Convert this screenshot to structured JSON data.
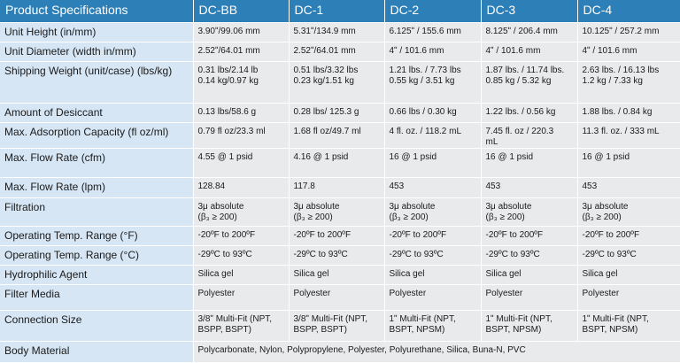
{
  "table": {
    "headers": [
      "Product Specifications",
      "DC-BB",
      "DC-1",
      "DC-2",
      "DC-3",
      "DC-4"
    ],
    "rows": [
      {
        "key": "height",
        "label": "Unit Height (in/mm)",
        "values": [
          [
            "3.90ʺ/99.06  mm"
          ],
          [
            "5.31ʺ/134.9  mm"
          ],
          [
            "6.125ʺ / 155.6  mm"
          ],
          [
            "8.125ʺ / 206.4  mm"
          ],
          [
            "10.125ʺ / 257.2  mm"
          ]
        ]
      },
      {
        "key": "diam",
        "label": "Unit Diameter (width in/mm)",
        "values": [
          [
            "2.52ʺ/64.01  mm"
          ],
          [
            "2.52ʺ/64.01  mm"
          ],
          [
            "4ʺ / 101.6  mm"
          ],
          [
            "4ʺ / 101.6  mm"
          ],
          [
            "4ʺ / 101.6  mm"
          ]
        ]
      },
      {
        "key": "ship",
        "label": "Shipping Weight (unit/case) (lbs/kg)",
        "values": [
          [
            "0.31  lbs/2.14  lb",
            "0.14  kg/0.97  kg"
          ],
          [
            "0.51  lbs/3.32  lbs",
            "0.23  kg/1.51  kg"
          ],
          [
            "1.21  lbs. / 7.73  lbs",
            "0.55  kg / 3.51  kg"
          ],
          [
            "1.87  lbs. / 11.74  lbs.",
            "0.85  kg / 5.32  kg"
          ],
          [
            "2.63  lbs. / 16.13  lbs",
            "1.2  kg / 7.33  kg"
          ]
        ]
      },
      {
        "key": "desic",
        "label": "Amount of Desiccant",
        "values": [
          [
            "0.13  lbs/58.6  g"
          ],
          [
            "0.28  lbs/ 125.3  g"
          ],
          [
            "0.66  lbs / 0.30  kg"
          ],
          [
            "1.22  lbs. / 0.56  kg"
          ],
          [
            "1.88  lbs. / 0.84  kg"
          ]
        ]
      },
      {
        "key": "adsorb",
        "label": "Max. Adsorption Capacity  (fl oz/ml)",
        "values": [
          [
            "0.79  fl oz/23.3  ml"
          ],
          [
            "1.68  fl oz/49.7  ml"
          ],
          [
            "4  fl. oz. / 118.2  mL"
          ],
          [
            "7.45  fl. oz / 220.3",
            "mL"
          ],
          [
            "11.3  fl. oz. / 333  mL"
          ]
        ]
      },
      {
        "key": "cfm",
        "label": "Max. Flow Rate  (cfm)",
        "values": [
          [
            "4.55 @ 1 psid"
          ],
          [
            "4.16 @ 1 psid"
          ],
          [
            "16 @ 1 psid"
          ],
          [
            "16 @ 1 psid"
          ],
          [
            "16 @ 1 psid"
          ]
        ]
      },
      {
        "key": "lpm",
        "label": "Max. Flow Rate  (lpm)",
        "values": [
          [
            "128.84"
          ],
          [
            "117.8"
          ],
          [
            "453"
          ],
          [
            "453"
          ],
          [
            "453"
          ]
        ]
      },
      {
        "key": "filt",
        "label": "Filtration",
        "values": [
          [
            "3μ absolute",
            "(β₃ ≥ 200)"
          ],
          [
            "3μ absolute",
            "(β₃ ≥ 200)"
          ],
          [
            "3μ absolute",
            "(β₃ ≥ 200)"
          ],
          [
            "3μ absolute",
            "(β₃ ≥ 200)"
          ],
          [
            "3μ absolute",
            "(β₃ ≥ 200)"
          ]
        ]
      },
      {
        "key": "tf",
        "label": "Operating  Temp.  Range  (°F)",
        "values": [
          [
            "-20ºF to 200ºF"
          ],
          [
            "-20ºF to 200ºF"
          ],
          [
            "-20ºF to 200ºF"
          ],
          [
            "-20ºF to 200ºF"
          ],
          [
            "-20ºF to 200ºF"
          ]
        ]
      },
      {
        "key": "tc",
        "label": "Operating  Temp.  Range  (°C)",
        "values": [
          [
            "-29ºC  to 93ºC"
          ],
          [
            "-29ºC  to 93ºC"
          ],
          [
            "-29ºC  to 93ºC"
          ],
          [
            "-29ºC  to 93ºC"
          ],
          [
            "-29ºC  to 93ºC"
          ]
        ]
      },
      {
        "key": "hydro",
        "label": "Hydrophilic  Agent",
        "values": [
          [
            "Silica  gel"
          ],
          [
            "Silica  gel"
          ],
          [
            "Silica  gel"
          ],
          [
            "Silica  gel"
          ],
          [
            "Silica  gel"
          ]
        ]
      },
      {
        "key": "media",
        "label": "Filter Media",
        "values": [
          [
            "Polyester"
          ],
          [
            "Polyester"
          ],
          [
            "Polyester"
          ],
          [
            "Polyester"
          ],
          [
            "Polyester"
          ]
        ]
      },
      {
        "key": "conn",
        "label": "Connection  Size",
        "values": [
          [
            "3/8ʺ  Multi-Fit (NPT,",
            "BSPP,  BSPT)"
          ],
          [
            "3/8ʺ  Multi-Fit (NPT,",
            "BSPP,  BSPT)"
          ],
          [
            "1ʺ  Multi-Fit (NPT,",
            "BSPT,  NPSM)"
          ],
          [
            "1ʺ  Multi-Fit (NPT,",
            "BSPT,  NPSM)"
          ],
          [
            "1ʺ  Multi-Fit (NPT,",
            "BSPT,  NPSM)"
          ]
        ]
      }
    ],
    "body_material": {
      "label": "Body  Material",
      "value": "Polycarbonate,  Nylon,  Polypropylene,  Polyester,  Polyurethane,  Silica,  Buna-N,  PVC"
    }
  }
}
